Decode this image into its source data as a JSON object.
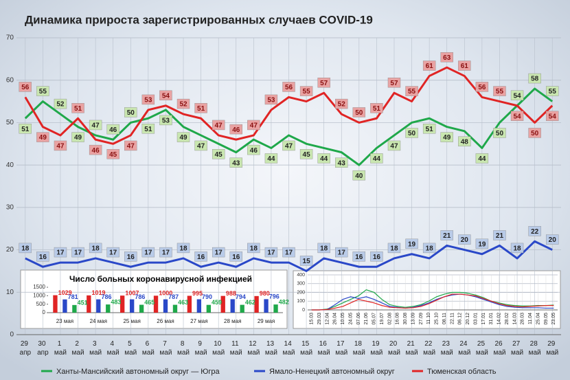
{
  "chart_data": [
    {
      "type": "line",
      "title": "Динамика прироста зарегистрированных случаев COVID-19",
      "categories": [
        "29 апр",
        "30 апр",
        "1 май",
        "2 май",
        "3 май",
        "4 май",
        "5 май",
        "6 май",
        "7 май",
        "8 май",
        "9 май",
        "10 май",
        "11 май",
        "12 май",
        "13 май",
        "14 май",
        "15 май",
        "16 май",
        "17 май",
        "18 май",
        "19 май",
        "20 май",
        "21 май",
        "22 май",
        "23 май",
        "24 май",
        "25 май",
        "26 май",
        "27 май",
        "28 май",
        "29 май"
      ],
      "series": [
        {
          "name": "Ханты-Мансийский автономный округ — Югра",
          "color": "#1fa84a",
          "label_color": "#c9e6b0",
          "values": [
            51,
            55,
            52,
            49,
            47,
            46,
            50,
            51,
            53,
            49,
            47,
            45,
            43,
            46,
            44,
            47,
            45,
            44,
            43,
            40,
            44,
            47,
            50,
            51,
            49,
            48,
            44,
            50,
            54,
            58,
            55
          ]
        },
        {
          "name": "Ямало-Ненецкий автономный округ",
          "color": "#2a48c8",
          "label_color": "#b9cbe8",
          "values": [
            18,
            16,
            17,
            17,
            18,
            17,
            16,
            17,
            17,
            18,
            16,
            17,
            16,
            18,
            17,
            17,
            15,
            18,
            17,
            16,
            16,
            18,
            19,
            18,
            21,
            20,
            19,
            21,
            18,
            22,
            20
          ]
        },
        {
          "name": "Тюменская область",
          "color": "#e02424",
          "label_color": "#e9a3a3",
          "values": [
            56,
            49,
            47,
            51,
            46,
            45,
            47,
            53,
            54,
            52,
            51,
            47,
            46,
            47,
            53,
            56,
            55,
            57,
            52,
            50,
            51,
            57,
            55,
            61,
            63,
            61,
            56,
            55,
            54,
            50,
            54
          ]
        }
      ],
      "ylim": [
        0,
        70
      ],
      "yticks": [
        0,
        10,
        20,
        30,
        40,
        50,
        60,
        70
      ],
      "grid": true,
      "data_labels": true
    },
    {
      "type": "bar",
      "title": "Число больных коронавирусной инфекцией",
      "categories": [
        "23 мая",
        "24 мая",
        "25 мая",
        "26 мая",
        "27 мая",
        "28 мая",
        "29 мая"
      ],
      "series": [
        {
          "color": "#e02424",
          "values": [
            1029,
            1019,
            1007,
            1000,
            995,
            988,
            980
          ]
        },
        {
          "color": "#2a48c8",
          "values": [
            781,
            786,
            786,
            787,
            790,
            794,
            796
          ]
        },
        {
          "color": "#1fa84a",
          "values": [
            451,
            483,
            465,
            463,
            459,
            462,
            482
          ]
        }
      ],
      "ylim": [
        0,
        1500
      ],
      "yticks": [
        0,
        500,
        1000,
        1500
      ],
      "data_labels": true
    },
    {
      "type": "line",
      "categories": [
        "15.03",
        "29.03",
        "12.04",
        "26.04",
        "10.05",
        "24.05",
        "07.06",
        "21.06",
        "05.07",
        "19.07",
        "02.08",
        "16.08",
        "30.08",
        "13.09",
        "27.09",
        "11.10",
        "25.10",
        "08.11",
        "22.11",
        "06.12",
        "20.12",
        "03.01",
        "17.01",
        "31.01",
        "14.02",
        "28.02",
        "14.03",
        "28.03",
        "11.04",
        "25.04",
        "09.05",
        "23.05"
      ],
      "series": [
        {
          "color": "#1fa84a",
          "values": [
            0,
            0,
            10,
            40,
            80,
            120,
            160,
            230,
            200,
            120,
            60,
            40,
            30,
            40,
            60,
            100,
            150,
            180,
            200,
            200,
            190,
            170,
            140,
            100,
            80,
            60,
            50,
            45,
            45,
            50,
            50,
            55
          ]
        },
        {
          "color": "#2a48c8",
          "values": [
            0,
            0,
            5,
            60,
            120,
            150,
            130,
            150,
            120,
            80,
            40,
            30,
            20,
            30,
            50,
            80,
            120,
            150,
            170,
            180,
            170,
            150,
            120,
            90,
            60,
            40,
            30,
            25,
            25,
            25,
            20,
            20
          ]
        },
        {
          "color": "#e02424",
          "values": [
            0,
            0,
            5,
            20,
            40,
            80,
            120,
            100,
            80,
            50,
            30,
            25,
            20,
            25,
            40,
            70,
            110,
            150,
            180,
            180,
            170,
            160,
            130,
            100,
            70,
            50,
            40,
            35,
            40,
            45,
            50,
            50
          ]
        }
      ],
      "ylim": [
        0,
        400
      ],
      "yticks": [
        0,
        100,
        200,
        300,
        400
      ],
      "grid": true
    }
  ]
}
